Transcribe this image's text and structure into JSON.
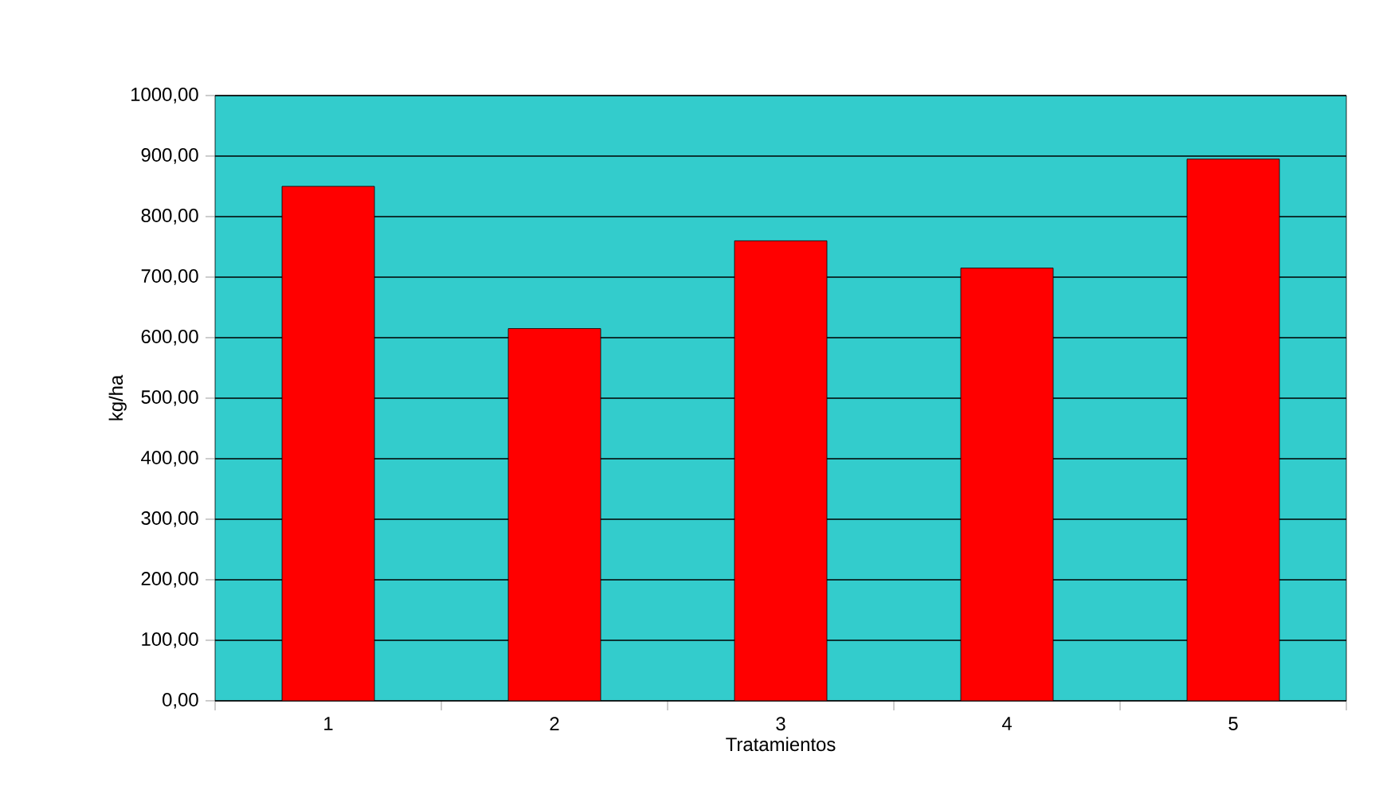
{
  "chart_data": {
    "type": "bar",
    "xlabel": "Tratamientos",
    "ylabel": "kg/ha",
    "categories": [
      "1",
      "2",
      "3",
      "4",
      "5"
    ],
    "values": [
      850,
      615,
      760,
      715,
      895
    ],
    "color": "#ff0000",
    "ylim": [
      0,
      1000
    ],
    "yticks": [
      {
        "value": 0,
        "label": "0,00"
      },
      {
        "value": 100,
        "label": "100,00"
      },
      {
        "value": 200,
        "label": "200,00"
      },
      {
        "value": 300,
        "label": "300,00"
      },
      {
        "value": 400,
        "label": "400,00"
      },
      {
        "value": 500,
        "label": "500,00"
      },
      {
        "value": 600,
        "label": "600,00"
      },
      {
        "value": 700,
        "label": "700,00"
      },
      {
        "value": 800,
        "label": "800,00"
      },
      {
        "value": 900,
        "label": "900,00"
      },
      {
        "value": 1000,
        "label": "1000,00"
      }
    ],
    "grid": "y"
  }
}
